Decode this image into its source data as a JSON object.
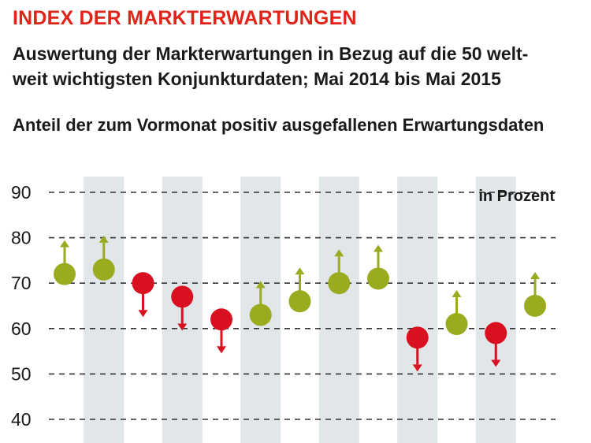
{
  "header": {
    "kicker": "INDEX DER MARKTERWARTUNGEN",
    "subtitle_line1": "Auswertung der Markterwartungen in Bezug auf die 50 welt-",
    "subtitle_line2": "weit wichtigsten Konjunkturdaten; Mai 2014 bis Mai 2015",
    "chart_heading": "Anteil der zum Vormonat positiv ausgefallenen Erwartungsdaten"
  },
  "colors": {
    "positive": "#9aab1f",
    "negative": "#d8101f",
    "band": "#e1e6e9",
    "grid": "#333333"
  },
  "chart_data": {
    "type": "scatter",
    "title": "Anteil der zum Vormonat positiv ausgefallenen Erwartungsdaten",
    "unit_label": "in Prozent",
    "ylim": [
      40,
      90
    ],
    "yticks": [
      90,
      80,
      70,
      60,
      50,
      40
    ],
    "grid": true,
    "legend": "none",
    "series": [
      {
        "values": [
          72,
          73,
          70,
          67,
          62,
          63,
          66,
          70,
          71,
          58,
          61,
          59,
          65
        ],
        "direction": [
          "up",
          "up",
          "down",
          "down",
          "down",
          "up",
          "up",
          "up",
          "up",
          "down",
          "up",
          "down",
          "up"
        ]
      }
    ]
  }
}
